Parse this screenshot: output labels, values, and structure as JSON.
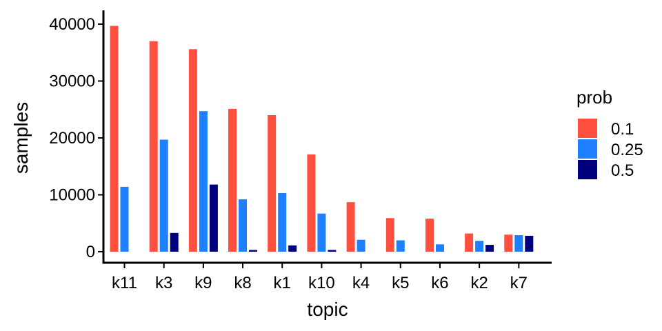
{
  "chart_data": {
    "type": "bar",
    "xlabel": "topic",
    "ylabel": "samples",
    "ylim": [
      0,
      42000
    ],
    "yticks": [
      0,
      10000,
      20000,
      30000,
      40000
    ],
    "grid": false,
    "legend_position": "right",
    "legend_title": "prob",
    "categories": [
      "k11",
      "k3",
      "k9",
      "k8",
      "k1",
      "k10",
      "k4",
      "k5",
      "k6",
      "k2",
      "k7"
    ],
    "series": [
      {
        "name": "0.1",
        "color": "#FF4F3F",
        "values": [
          39700,
          37000,
          35600,
          25100,
          24000,
          17100,
          8700,
          5900,
          5800,
          3200,
          3000
        ]
      },
      {
        "name": "0.25",
        "color": "#1E7FFF",
        "values": [
          11400,
          19700,
          24700,
          9200,
          10300,
          6700,
          2100,
          2000,
          1300,
          1900,
          2900
        ]
      },
      {
        "name": "0.5",
        "color": "#00007F",
        "values": [
          null,
          3300,
          11800,
          300,
          1100,
          300,
          null,
          null,
          null,
          1200,
          2800
        ]
      }
    ]
  }
}
